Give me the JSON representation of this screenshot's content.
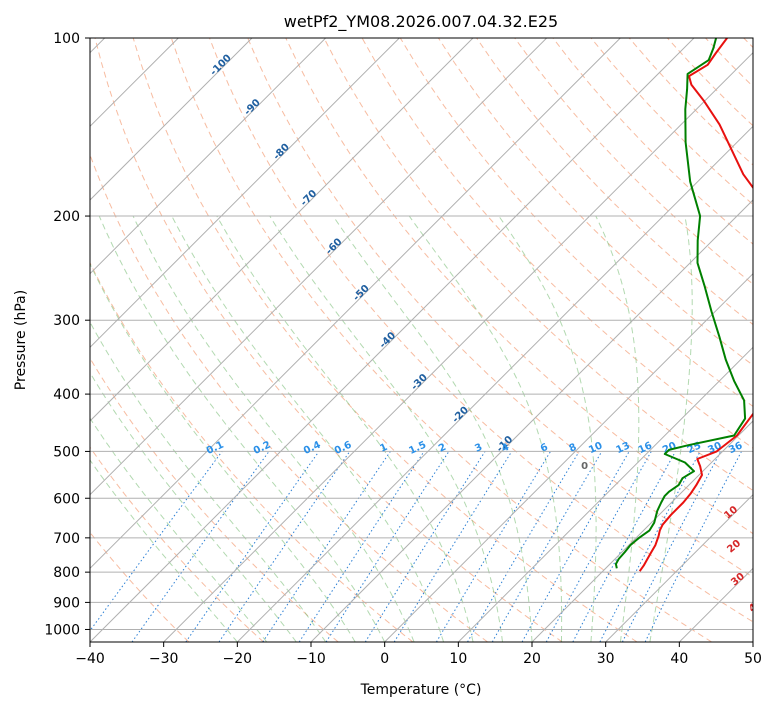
{
  "chart_data": {
    "type": "line",
    "title": "wetPf2_YM08.2026.007.04.32.E25",
    "xlabel": "Temperature (°C)",
    "ylabel": "Pressure (hPa)",
    "xlim": [
      -40,
      50
    ],
    "ylim": [
      1050,
      100
    ],
    "x_ticks": [
      "−40",
      "−30",
      "−20",
      "−10",
      "0",
      "10",
      "20",
      "30",
      "40",
      "50"
    ],
    "x_tick_values": [
      -40,
      -30,
      -20,
      -10,
      0,
      10,
      20,
      30,
      40,
      50
    ],
    "y_ticks": [
      "100",
      "200",
      "300",
      "400",
      "500",
      "600",
      "700",
      "800",
      "900",
      "1000"
    ],
    "y_tick_values": [
      100,
      200,
      300,
      400,
      500,
      600,
      700,
      800,
      900,
      1000
    ],
    "isotherm_labels": [
      {
        "text": "-100",
        "T": -100,
        "p": 112
      },
      {
        "text": "-90",
        "T": -90,
        "p": 132
      },
      {
        "text": "-80",
        "T": -80,
        "p": 157
      },
      {
        "text": "-70",
        "T": -70,
        "p": 188
      },
      {
        "text": "-60",
        "T": -60,
        "p": 227
      },
      {
        "text": "-50",
        "T": -50,
        "p": 272
      },
      {
        "text": "-40",
        "T": -40,
        "p": 327
      },
      {
        "text": "-30",
        "T": -30,
        "p": 385
      },
      {
        "text": "-20",
        "T": -20,
        "p": 437
      },
      {
        "text": "-10",
        "T": -10,
        "p": 490
      }
    ],
    "mixing_ratio_labels": [
      "0.1",
      "0.2",
      "0.4",
      "0.6",
      "1",
      "1.5",
      "2",
      "3",
      "4",
      "6",
      "8",
      "10",
      "13",
      "16",
      "20",
      "25",
      "30",
      "36"
    ],
    "mixing_ratio_values": [
      0.1,
      0.2,
      0.4,
      0.6,
      1,
      1.5,
      2,
      3,
      4,
      6,
      8,
      10,
      13,
      16,
      20,
      25,
      30,
      36
    ],
    "dry_adiabat_labels": [
      {
        "text": "10",
        "T": 30,
        "p": 640
      },
      {
        "text": "20",
        "T": 35,
        "p": 730
      },
      {
        "text": "30",
        "T": 40,
        "p": 830
      },
      {
        "text": "40",
        "T": 46,
        "p": 920
      }
    ],
    "moist_adiabat_labels": [
      {
        "text": "0",
        "T": 24,
        "p": 535
      }
    ],
    "series": [
      {
        "name": "Temperature",
        "color": "#e8110f",
        "points": [
          {
            "T": 25.0,
            "p": 797
          },
          {
            "T": 24.8,
            "p": 780
          },
          {
            "T": 24.4,
            "p": 760
          },
          {
            "T": 24.0,
            "p": 740
          },
          {
            "T": 23.6,
            "p": 720
          },
          {
            "T": 22.8,
            "p": 695
          },
          {
            "T": 22.2,
            "p": 680
          },
          {
            "T": 21.8,
            "p": 665
          },
          {
            "T": 21.6,
            "p": 640
          },
          {
            "T": 21.6,
            "p": 610
          },
          {
            "T": 21.4,
            "p": 590
          },
          {
            "T": 21.0,
            "p": 570
          },
          {
            "T": 20.4,
            "p": 548
          },
          {
            "T": 19.0,
            "p": 530
          },
          {
            "T": 17.6,
            "p": 515
          },
          {
            "T": 19.2,
            "p": 500
          },
          {
            "T": 19.8,
            "p": 470
          },
          {
            "T": 18.8,
            "p": 420
          },
          {
            "T": 17.4,
            "p": 380
          },
          {
            "T": 15.2,
            "p": 340
          },
          {
            "T": 12.0,
            "p": 300
          },
          {
            "T": 7.4,
            "p": 262
          },
          {
            "T": 1.2,
            "p": 226
          },
          {
            "T": -5.0,
            "p": 200
          },
          {
            "T": -14.8,
            "p": 170
          },
          {
            "T": -24.8,
            "p": 140
          },
          {
            "T": -30.0,
            "p": 128
          },
          {
            "T": -34.0,
            "p": 120
          },
          {
            "T": -35.5,
            "p": 116
          },
          {
            "T": -34.5,
            "p": 111
          },
          {
            "T": -35.0,
            "p": 106
          },
          {
            "T": -35.5,
            "p": 100
          }
        ]
      },
      {
        "name": "Dewpoint",
        "color": "#008000",
        "points": [
          {
            "T": 21.5,
            "p": 788
          },
          {
            "T": 20.8,
            "p": 775
          },
          {
            "T": 20.5,
            "p": 760
          },
          {
            "T": 20.4,
            "p": 740
          },
          {
            "T": 20.2,
            "p": 720
          },
          {
            "T": 20.4,
            "p": 700
          },
          {
            "T": 20.8,
            "p": 680
          },
          {
            "T": 20.4,
            "p": 660
          },
          {
            "T": 19.2,
            "p": 630
          },
          {
            "T": 18.6,
            "p": 610
          },
          {
            "T": 18.2,
            "p": 595
          },
          {
            "T": 18.2,
            "p": 585
          },
          {
            "T": 18.6,
            "p": 570
          },
          {
            "T": 18.2,
            "p": 555
          },
          {
            "T": 18.8,
            "p": 540
          },
          {
            "T": 16.4,
            "p": 522
          },
          {
            "T": 12.5,
            "p": 505
          },
          {
            "T": 12.5,
            "p": 497
          },
          {
            "T": 14.5,
            "p": 488
          },
          {
            "T": 19.4,
            "p": 470
          },
          {
            "T": 18.6,
            "p": 440
          },
          {
            "T": 16.0,
            "p": 410
          },
          {
            "T": 12.0,
            "p": 380
          },
          {
            "T": 8.0,
            "p": 350
          },
          {
            "T": 4.0,
            "p": 320
          },
          {
            "T": -0.5,
            "p": 290
          },
          {
            "T": -5.0,
            "p": 262
          },
          {
            "T": -9.0,
            "p": 240
          },
          {
            "T": -12.0,
            "p": 220
          },
          {
            "T": -15.0,
            "p": 200
          },
          {
            "T": -21.0,
            "p": 175
          },
          {
            "T": -27.0,
            "p": 150
          },
          {
            "T": -31.5,
            "p": 132
          },
          {
            "T": -34.0,
            "p": 122
          },
          {
            "T": -36.0,
            "p": 115
          },
          {
            "T": -35.0,
            "p": 109
          },
          {
            "T": -36.0,
            "p": 104
          },
          {
            "T": -37.0,
            "p": 100
          }
        ]
      }
    ],
    "grid": true
  }
}
